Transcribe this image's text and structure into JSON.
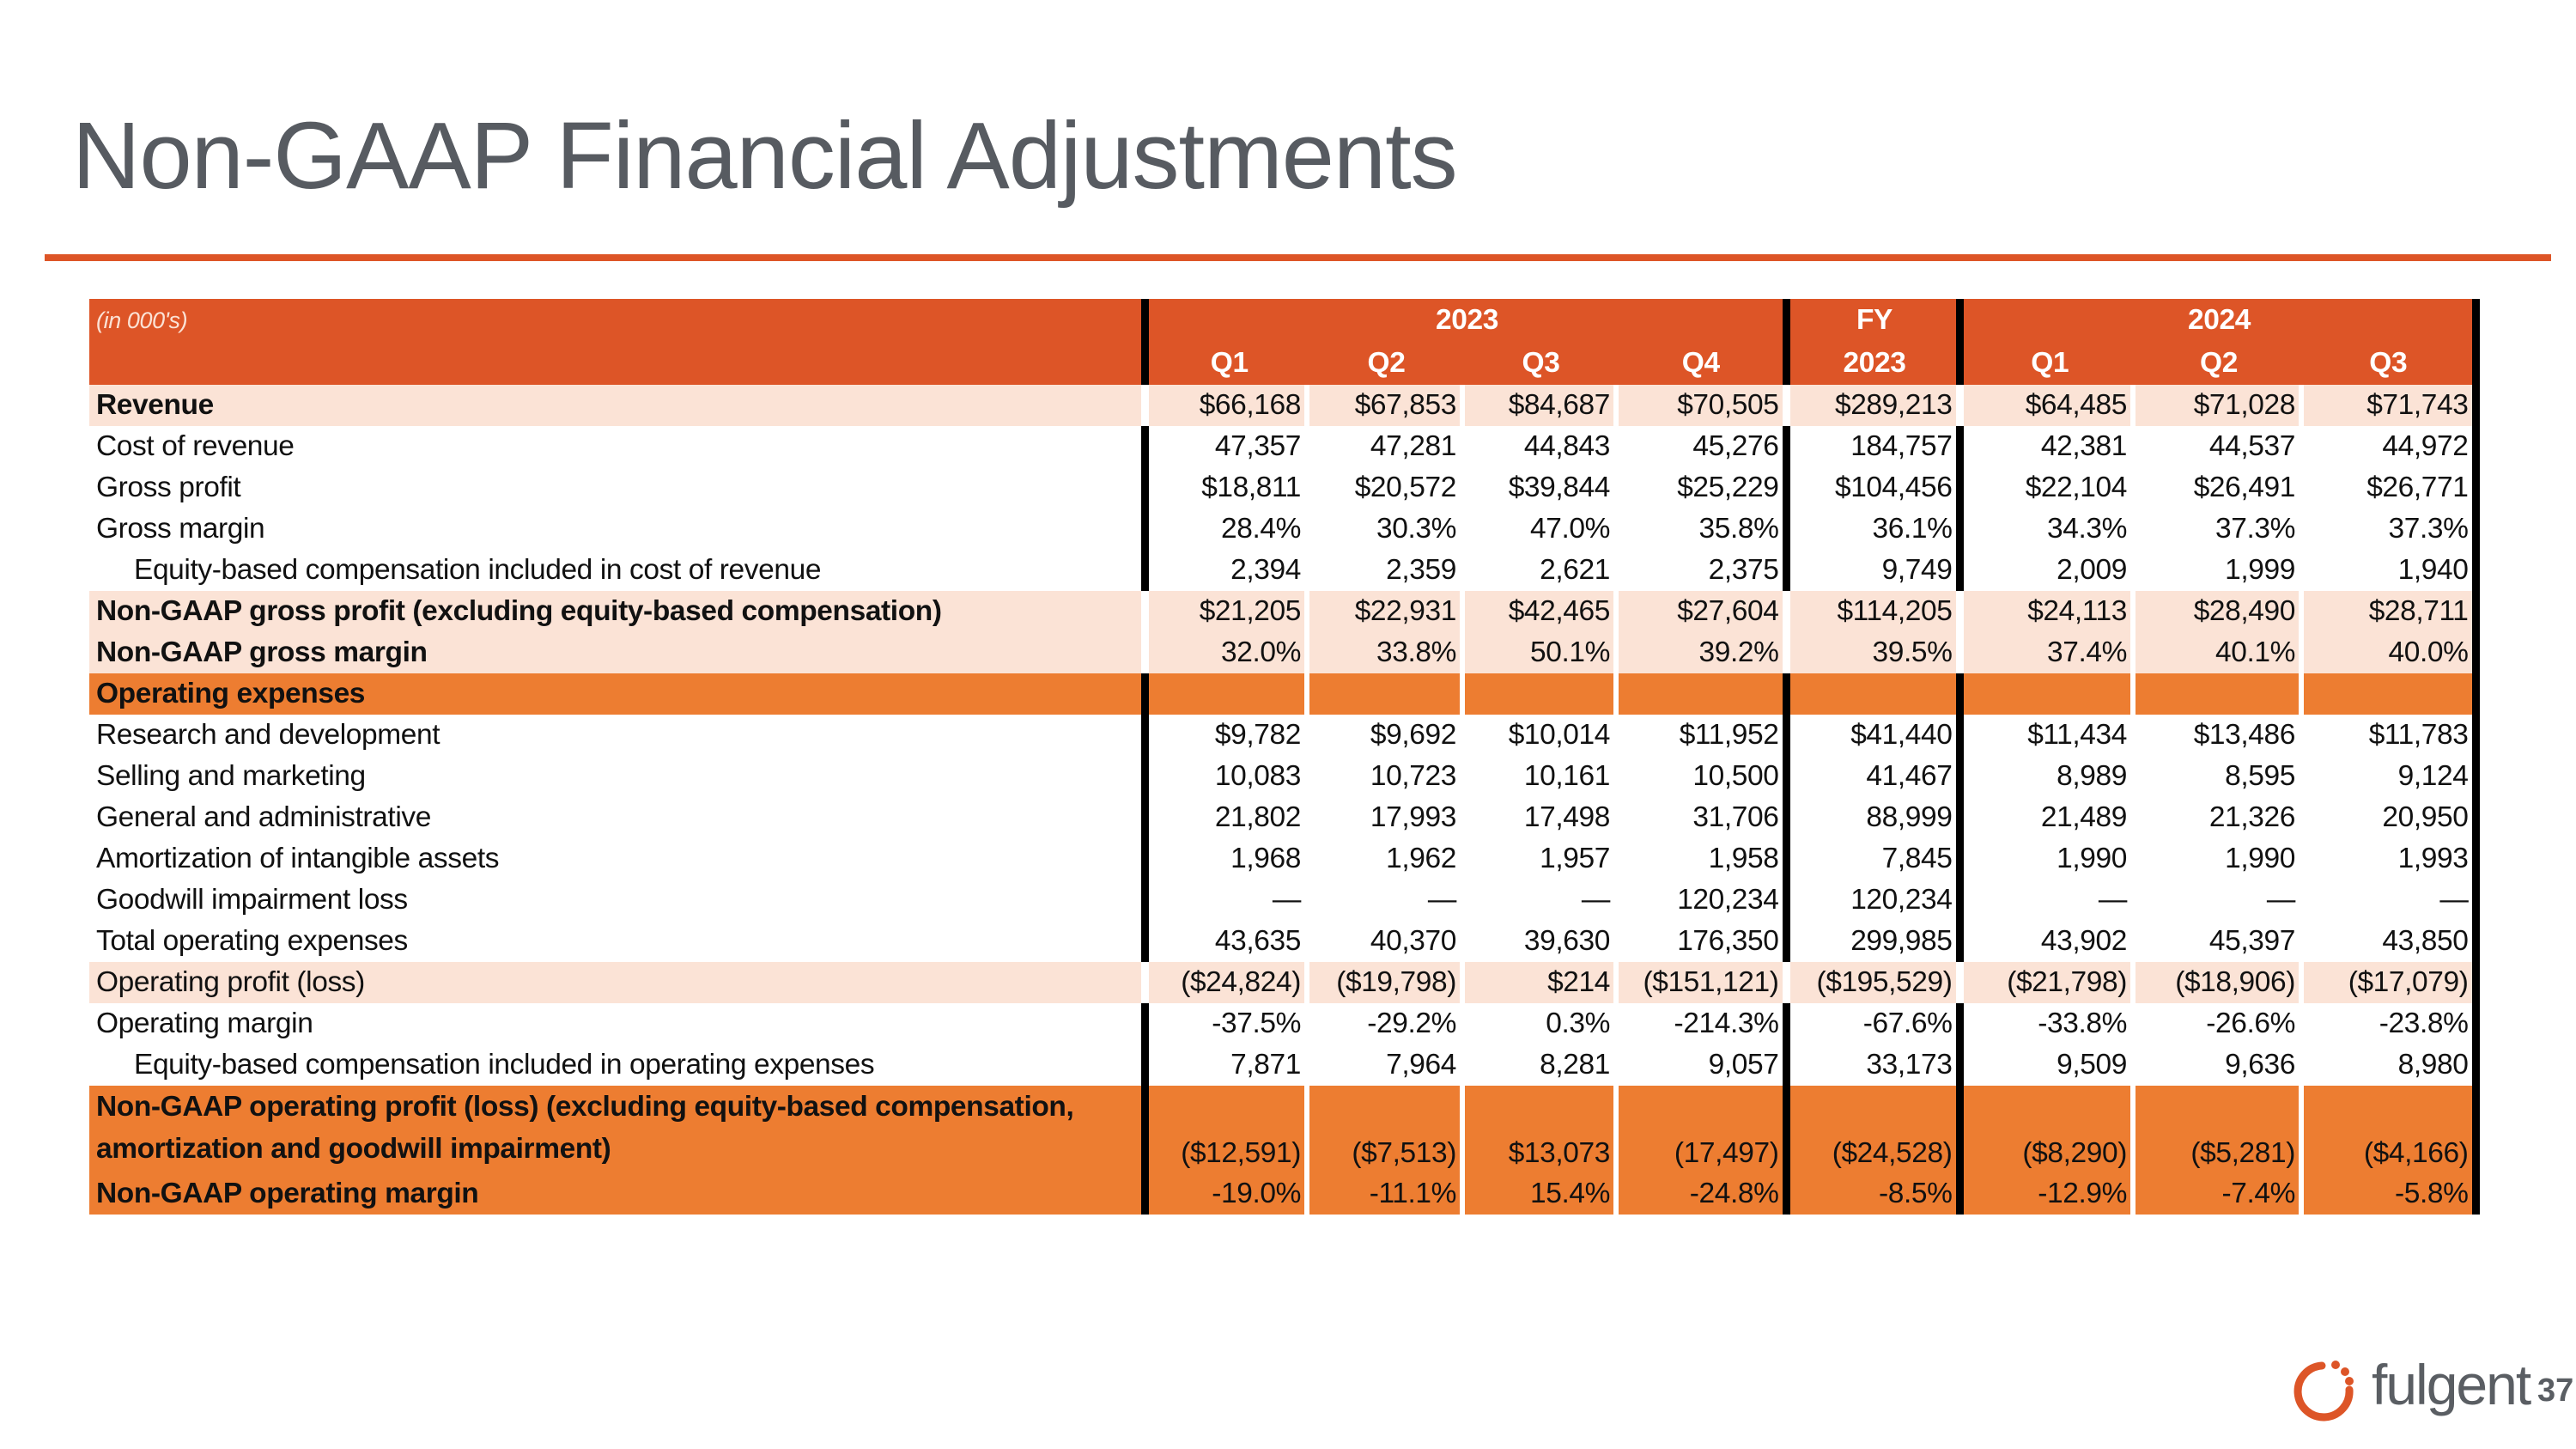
{
  "title": "Non-GAAP Financial Adjustments",
  "table": {
    "units": "(in 000's)",
    "groups": {
      "y2023": "2023",
      "fy": "FY",
      "y2024": "2024"
    },
    "columns": [
      "Q1",
      "Q2",
      "Q3",
      "Q4",
      "2023",
      "Q1",
      "Q2",
      "Q3"
    ],
    "rows": [
      {
        "label": "Revenue",
        "style": "hl bold",
        "values": [
          "$66,168",
          "$67,853",
          "$84,687",
          "$70,505",
          "$289,213",
          "$64,485",
          "$71,028",
          "$71,743"
        ]
      },
      {
        "label": "Cost of revenue",
        "style": "",
        "values": [
          "47,357",
          "47,281",
          "44,843",
          "45,276",
          "184,757",
          "42,381",
          "44,537",
          "44,972"
        ]
      },
      {
        "label": "Gross profit",
        "style": "",
        "values": [
          "$18,811",
          "$20,572",
          "$39,844",
          "$25,229",
          "$104,456",
          "$22,104",
          "$26,491",
          "$26,771"
        ]
      },
      {
        "label": "Gross margin",
        "style": "",
        "values": [
          "28.4%",
          "30.3%",
          "47.0%",
          "35.8%",
          "36.1%",
          "34.3%",
          "37.3%",
          "37.3%"
        ]
      },
      {
        "label": "Equity-based compensation included in cost of revenue",
        "style": "indent",
        "values": [
          "2,394",
          "2,359",
          "2,621",
          "2,375",
          "9,749",
          "2,009",
          "1,999",
          "1,940"
        ]
      },
      {
        "label": "Non-GAAP gross profit (excluding equity-based compensation)",
        "style": "hl bold",
        "values": [
          "$21,205",
          "$22,931",
          "$42,465",
          "$27,604",
          "$114,205",
          "$24,113",
          "$28,490",
          "$28,711"
        ]
      },
      {
        "label": "Non-GAAP gross margin",
        "style": "hl bold",
        "values": [
          "32.0%",
          "33.8%",
          "50.1%",
          "39.2%",
          "39.5%",
          "37.4%",
          "40.1%",
          "40.0%"
        ]
      },
      {
        "label": "Operating expenses",
        "style": "orange",
        "values": [
          "",
          "",
          "",
          "",
          "",
          "",
          "",
          ""
        ]
      },
      {
        "label": "Research and development",
        "style": "",
        "values": [
          "$9,782",
          "$9,692",
          "$10,014",
          "$11,952",
          "$41,440",
          "$11,434",
          "$13,486",
          "$11,783"
        ]
      },
      {
        "label": "Selling and marketing",
        "style": "",
        "values": [
          "10,083",
          "10,723",
          "10,161",
          "10,500",
          "41,467",
          "8,989",
          "8,595",
          "9,124"
        ]
      },
      {
        "label": "General and administrative",
        "style": "",
        "values": [
          "21,802",
          "17,993",
          "17,498",
          "31,706",
          "88,999",
          "21,489",
          "21,326",
          "20,950"
        ]
      },
      {
        "label": "Amortization of intangible assets",
        "style": "",
        "values": [
          "1,968",
          "1,962",
          "1,957",
          "1,958",
          "7,845",
          "1,990",
          "1,990",
          "1,993"
        ]
      },
      {
        "label": "Goodwill impairment loss",
        "style": "",
        "values": [
          "—",
          "—",
          "—",
          "120,234",
          "120,234",
          "—",
          "—",
          "—"
        ]
      },
      {
        "label": "Total operating expenses",
        "style": "",
        "values": [
          "43,635",
          "40,370",
          "39,630",
          "176,350",
          "299,985",
          "43,902",
          "45,397",
          "43,850"
        ]
      },
      {
        "label": "Operating profit (loss)",
        "style": "hl",
        "values": [
          "($24,824)",
          "($19,798)",
          "$214",
          "($151,121)",
          "($195,529)",
          "($21,798)",
          "($18,906)",
          "($17,079)"
        ]
      },
      {
        "label": "Operating margin",
        "style": "",
        "values": [
          "-37.5%",
          "-29.2%",
          "0.3%",
          "-214.3%",
          "-67.6%",
          "-33.8%",
          "-26.6%",
          "-23.8%"
        ]
      },
      {
        "label": "Equity-based compensation included in operating expenses",
        "style": "indent",
        "values": [
          "7,871",
          "7,964",
          "8,281",
          "9,057",
          "33,173",
          "9,509",
          "9,636",
          "8,980"
        ]
      },
      {
        "label": "Non-GAAP operating profit (loss) (excluding equity-based compensation, amortization and goodwill impairment)",
        "style": "orange tall",
        "values": [
          "($12,591)",
          "($7,513)",
          "$13,073",
          "(17,497)",
          "($24,528)",
          "($8,290)",
          "($5,281)",
          "($4,166)"
        ]
      },
      {
        "label": "Non-GAAP operating margin",
        "style": "orange",
        "values": [
          "-19.0%",
          "-11.1%",
          "15.4%",
          "-24.8%",
          "-8.5%",
          "-12.9%",
          "-7.4%",
          "-5.8%"
        ]
      }
    ]
  },
  "footer": {
    "logo_text": "fulgent",
    "page_number": "37"
  },
  "colors": {
    "header": "#dd5527",
    "highlight": "#fbe3d6",
    "section": "#ed7d31",
    "title": "#575b61"
  }
}
